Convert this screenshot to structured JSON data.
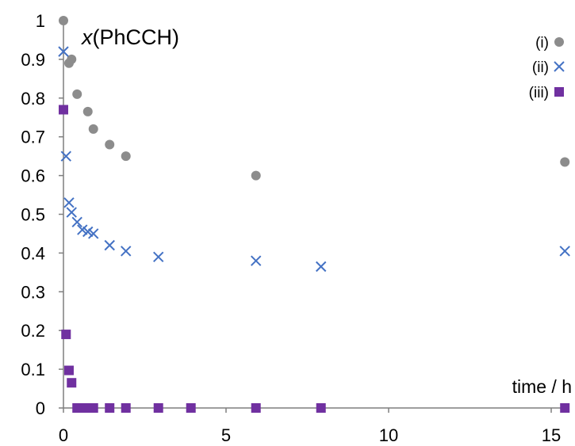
{
  "chart_data": {
    "type": "scatter",
    "title": "",
    "ylabel_italic": "x",
    "ylabel_rest": "(PhCCH)",
    "xlabel": "time / h",
    "xlim": [
      0,
      15.5
    ],
    "ylim": [
      0,
      1
    ],
    "xticks": [
      0,
      5,
      10,
      15
    ],
    "yticks": [
      0,
      0.1,
      0.2,
      0.3,
      0.4,
      0.5,
      0.6,
      0.7,
      0.8,
      0.9,
      1
    ],
    "ytick_labels": [
      "0",
      "0.1",
      "0.2",
      "0.3",
      "0.4",
      "0.5",
      "0.6",
      "0.7",
      "0.8",
      "0.9",
      "1"
    ],
    "legend_position": "top-right",
    "grid": false,
    "series": [
      {
        "name": "(i)",
        "marker": "circle",
        "color": "#8c8c8c",
        "x": [
          0.0,
          0.17,
          0.25,
          0.42,
          0.75,
          0.92,
          1.42,
          1.92,
          5.92,
          15.42
        ],
        "y": [
          1.0,
          0.89,
          0.9,
          0.81,
          0.765,
          0.72,
          0.68,
          0.65,
          0.6,
          0.635
        ]
      },
      {
        "name": "(ii)",
        "marker": "x",
        "color": "#4472c4",
        "x": [
          0.0,
          0.08,
          0.17,
          0.25,
          0.42,
          0.58,
          0.75,
          0.92,
          1.42,
          1.92,
          2.92,
          5.92,
          7.92,
          15.42
        ],
        "y": [
          0.92,
          0.65,
          0.53,
          0.505,
          0.48,
          0.46,
          0.455,
          0.45,
          0.42,
          0.405,
          0.39,
          0.38,
          0.365,
          0.405
        ]
      },
      {
        "name": "(iii)",
        "marker": "square",
        "color": "#7030a0",
        "x": [
          0.0,
          0.08,
          0.17,
          0.25,
          0.42,
          0.58,
          0.75,
          0.92,
          1.42,
          1.92,
          2.92,
          3.92,
          5.92,
          7.92,
          15.42
        ],
        "y": [
          0.77,
          0.19,
          0.097,
          0.065,
          0.0,
          0.0,
          0.0,
          0.0,
          0.0,
          0.0,
          0.0,
          0.0,
          0.0,
          0.0,
          0.0
        ]
      }
    ]
  }
}
